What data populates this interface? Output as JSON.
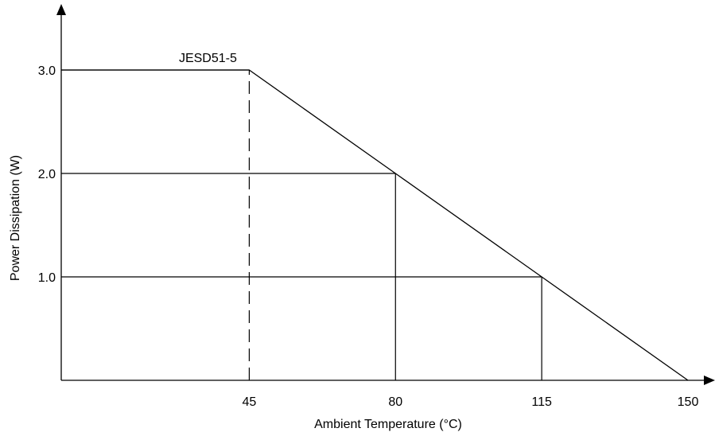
{
  "chart_data": {
    "type": "line",
    "xlabel": "Ambient Temperature (°C)",
    "ylabel": "Power Dissipation (W)",
    "xlim": [
      0,
      150
    ],
    "ylim": [
      0,
      3.0
    ],
    "x_ticks": [
      45,
      80,
      115,
      150
    ],
    "x_tick_labels": [
      "45",
      "80",
      "115",
      "150"
    ],
    "y_ticks": [
      1.0,
      2.0,
      3.0
    ],
    "y_tick_labels": [
      "1.0",
      "2.0",
      "3.0"
    ],
    "series": [
      {
        "x": [
          0,
          45,
          80,
          115,
          150
        ],
        "y": [
          3.0,
          3.0,
          2.0,
          1.0,
          0
        ]
      }
    ],
    "annotations": [
      {
        "text": "JESD51-5",
        "x": 45,
        "y": 3.0
      }
    ],
    "reference_lines": [
      {
        "x": 45,
        "style": "dashed"
      },
      {
        "x": 80,
        "style": "solid"
      },
      {
        "x": 115,
        "style": "solid"
      }
    ],
    "grid": false,
    "colors": {
      "line": "#000000",
      "background": "#ffffff"
    }
  }
}
